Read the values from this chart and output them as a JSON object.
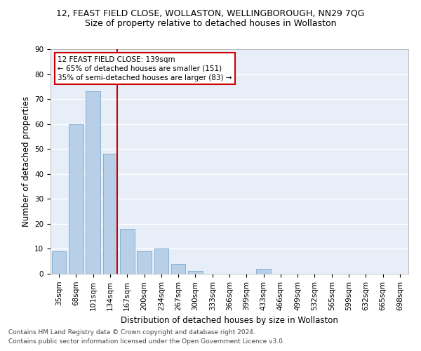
{
  "title1": "12, FEAST FIELD CLOSE, WOLLASTON, WELLINGBOROUGH, NN29 7QG",
  "title2": "Size of property relative to detached houses in Wollaston",
  "xlabel": "Distribution of detached houses by size in Wollaston",
  "ylabel": "Number of detached properties",
  "categories": [
    "35sqm",
    "68sqm",
    "101sqm",
    "134sqm",
    "167sqm",
    "200sqm",
    "234sqm",
    "267sqm",
    "300sqm",
    "333sqm",
    "366sqm",
    "399sqm",
    "433sqm",
    "466sqm",
    "499sqm",
    "532sqm",
    "565sqm",
    "599sqm",
    "632sqm",
    "665sqm",
    "698sqm"
  ],
  "values": [
    9,
    60,
    73,
    48,
    18,
    9,
    10,
    4,
    1,
    0,
    0,
    0,
    2,
    0,
    0,
    0,
    0,
    0,
    0,
    0,
    0
  ],
  "bar_color": "#b8cfe8",
  "bar_edge_color": "#7aaad0",
  "vline_color": "#cc0000",
  "annotation_box_color": "#cc0000",
  "ylim": [
    0,
    90
  ],
  "yticks": [
    0,
    10,
    20,
    30,
    40,
    50,
    60,
    70,
    80,
    90
  ],
  "bg_color": "#e8eef8",
  "grid_color": "#ffffff",
  "footer1": "Contains HM Land Registry data © Crown copyright and database right 2024.",
  "footer2": "Contains public sector information licensed under the Open Government Licence v3.0.",
  "title1_fontsize": 9,
  "title2_fontsize": 9,
  "xlabel_fontsize": 8.5,
  "ylabel_fontsize": 8.5,
  "tick_fontsize": 7.5,
  "footer_fontsize": 6.5,
  "annot_fontsize": 7.5,
  "annotation_line1": "12 FEAST FIELD CLOSE: 139sqm",
  "annotation_line2": "← 65% of detached houses are smaller (151)",
  "annotation_line3": "35% of semi-detached houses are larger (83) →"
}
